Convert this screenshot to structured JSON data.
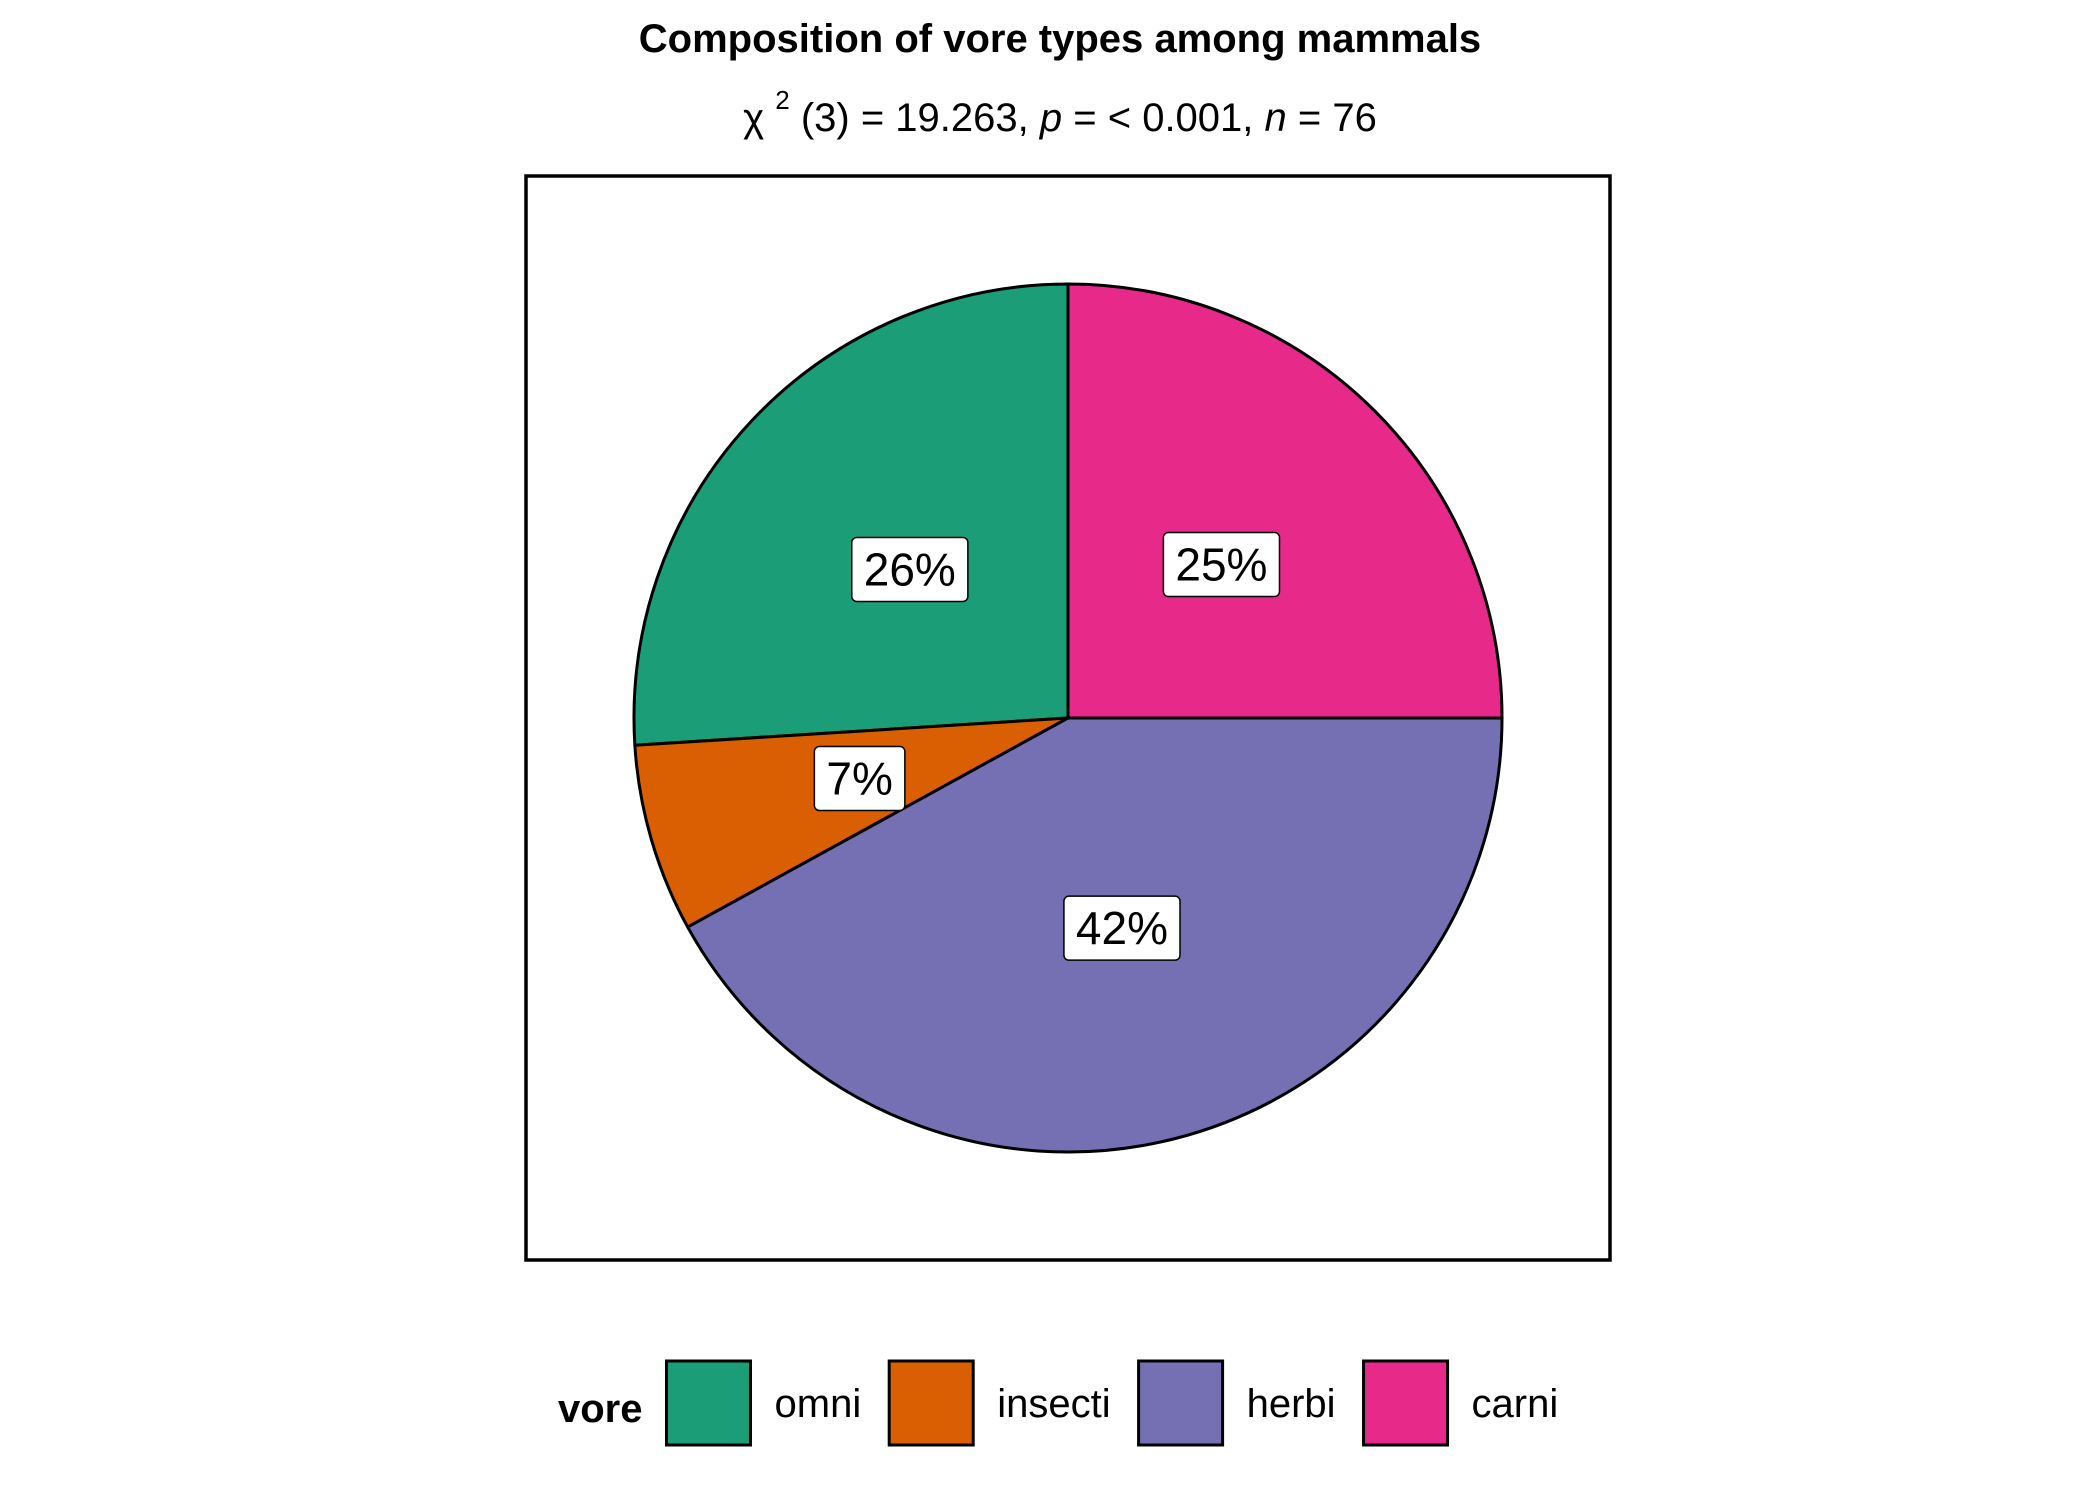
{
  "chart_data": {
    "type": "pie",
    "title": "Composition of vore types among mammals",
    "subtitle": {
      "chi": "χ",
      "sup": "2",
      "df_text": "(3) = 19.263, ",
      "p_label": "p",
      "p_text": " = < 0.001, ",
      "n_label": "n",
      "n_text": " = 76"
    },
    "legend_title": "vore",
    "legend_position": "bottom",
    "slices": [
      {
        "name": "omni",
        "value": 26,
        "label": "26%",
        "color": "#1B9E77"
      },
      {
        "name": "insecti",
        "value": 7,
        "label": "7%",
        "color": "#D95F02"
      },
      {
        "name": "herbi",
        "value": 42,
        "label": "42%",
        "color": "#7570B3"
      },
      {
        "name": "carni",
        "value": 25,
        "label": "25%",
        "color": "#E7298A"
      }
    ]
  }
}
